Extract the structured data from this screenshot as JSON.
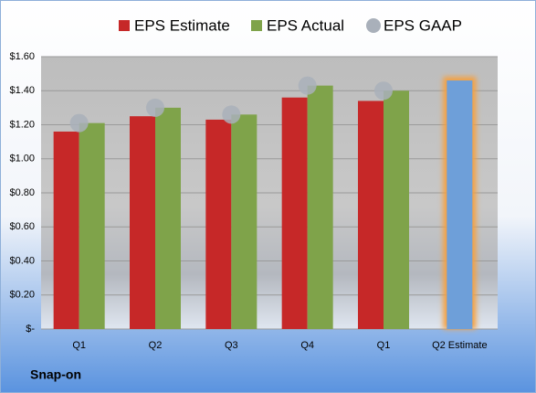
{
  "chart_data": {
    "type": "bar",
    "categories": [
      "Q1",
      "Q2",
      "Q3",
      "Q4",
      "Q1",
      "Q2 Estimate"
    ],
    "series": [
      {
        "name": "EPS Estimate",
        "color": "#c62828",
        "colors": [
          "#c62828",
          "#c62828",
          "#c62828",
          "#c62828",
          "#c62828",
          "#6e9fd9"
        ],
        "values": [
          1.16,
          1.25,
          1.23,
          1.36,
          1.34,
          1.46
        ]
      },
      {
        "name": "EPS Actual",
        "color": "#7fa34a",
        "values": [
          1.21,
          1.3,
          1.26,
          1.43,
          1.4,
          null
        ]
      },
      {
        "name": "EPS GAAP",
        "color": "#a9b0ba",
        "marker": "circle",
        "values": [
          1.21,
          1.3,
          1.26,
          1.43,
          1.4,
          null
        ]
      }
    ],
    "ylim": [
      0,
      1.6
    ],
    "yticks": [
      {
        "value": 0,
        "label": "$-"
      },
      {
        "value": 0.2,
        "label": "$0.20"
      },
      {
        "value": 0.4,
        "label": "$0.40"
      },
      {
        "value": 0.6,
        "label": "$0.60"
      },
      {
        "value": 0.8,
        "label": "$0.80"
      },
      {
        "value": 1.0,
        "label": "$1.00"
      },
      {
        "value": 1.2,
        "label": "$1.20"
      },
      {
        "value": 1.4,
        "label": "$1.40"
      },
      {
        "value": 1.6,
        "label": "$1.60"
      }
    ],
    "grid": true,
    "legend": "top",
    "footer": "Snap-on"
  }
}
